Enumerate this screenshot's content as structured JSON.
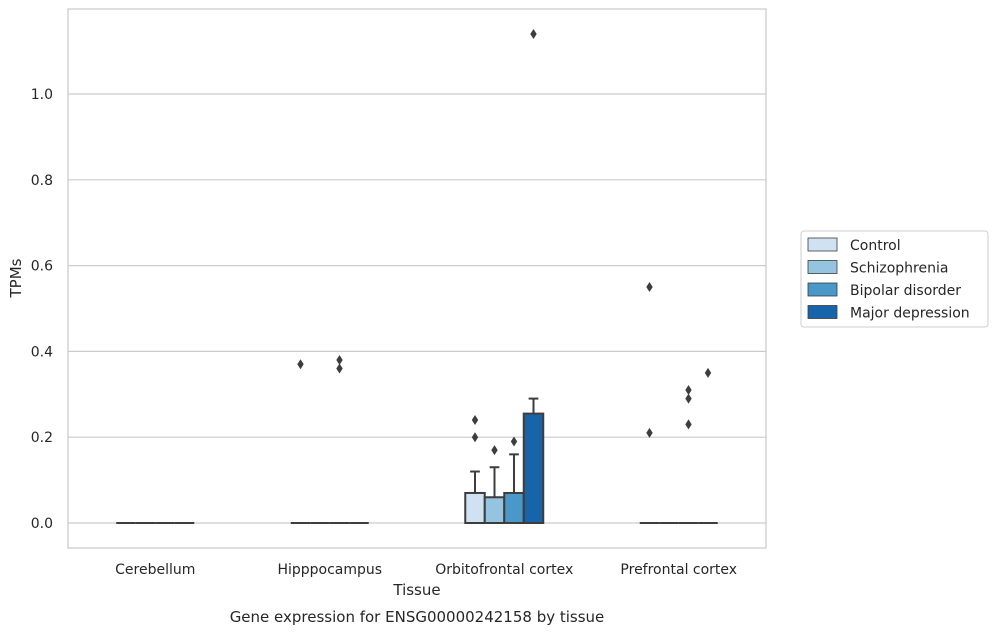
{
  "caption": "Gene expression for ENSG00000242158 by tissue",
  "chart_data": {
    "type": "box",
    "title": "",
    "xlabel": "Tissue",
    "ylabel": "TPMs",
    "ylim": [
      -0.055,
      1.2
    ],
    "yticks": [
      0.0,
      0.2,
      0.4,
      0.6,
      0.8,
      1.0
    ],
    "ytick_labels": [
      "0.0",
      "0.2",
      "0.4",
      "0.6",
      "0.8",
      "1.0"
    ],
    "grid": "horizontal",
    "legend_placement": "right",
    "categories": [
      "Cerebellum",
      "Hipppocampus",
      "Orbitofrontal cortex",
      "Prefrontal cortex"
    ],
    "series": [
      {
        "name": "Control",
        "color": "#d0e1f2",
        "boxes": [
          {
            "q1": 0,
            "median": 0,
            "q3": 0,
            "whisker_low": 0,
            "whisker_high": 0,
            "outliers": []
          },
          {
            "q1": 0,
            "median": 0,
            "q3": 0,
            "whisker_low": 0,
            "whisker_high": 0,
            "outliers": [
              0.37
            ]
          },
          {
            "q1": 0,
            "median": 0,
            "q3": 0.07,
            "whisker_low": 0,
            "whisker_high": 0.12,
            "outliers": [
              0.2,
              0.24
            ]
          },
          {
            "q1": 0,
            "median": 0,
            "q3": 0,
            "whisker_low": 0,
            "whisker_high": 0,
            "outliers": [
              0.21,
              0.55
            ]
          }
        ]
      },
      {
        "name": "Schizophrenia",
        "color": "#94c4df",
        "boxes": [
          {
            "q1": 0,
            "median": 0,
            "q3": 0,
            "whisker_low": 0,
            "whisker_high": 0,
            "outliers": []
          },
          {
            "q1": 0,
            "median": 0,
            "q3": 0,
            "whisker_low": 0,
            "whisker_high": 0,
            "outliers": []
          },
          {
            "q1": 0,
            "median": 0,
            "q3": 0.06,
            "whisker_low": 0,
            "whisker_high": 0.13,
            "outliers": [
              0.17
            ]
          },
          {
            "q1": 0,
            "median": 0,
            "q3": 0,
            "whisker_low": 0,
            "whisker_high": 0,
            "outliers": []
          }
        ]
      },
      {
        "name": "Bipolar disorder",
        "color": "#4a98c9",
        "boxes": [
          {
            "q1": 0,
            "median": 0,
            "q3": 0,
            "whisker_low": 0,
            "whisker_high": 0,
            "outliers": []
          },
          {
            "q1": 0,
            "median": 0,
            "q3": 0,
            "whisker_low": 0,
            "whisker_high": 0,
            "outliers": [
              0.36,
              0.38
            ]
          },
          {
            "q1": 0,
            "median": 0,
            "q3": 0.07,
            "whisker_low": 0,
            "whisker_high": 0.16,
            "outliers": [
              0.19
            ]
          },
          {
            "q1": 0,
            "median": 0,
            "q3": 0,
            "whisker_low": 0,
            "whisker_high": 0,
            "outliers": [
              0.23,
              0.29,
              0.31
            ]
          }
        ]
      },
      {
        "name": "Major depression",
        "color": "#1764ab",
        "boxes": [
          {
            "q1": 0,
            "median": 0,
            "q3": 0,
            "whisker_low": 0,
            "whisker_high": 0,
            "outliers": []
          },
          {
            "q1": 0,
            "median": 0,
            "q3": 0,
            "whisker_low": 0,
            "whisker_high": 0,
            "outliers": []
          },
          {
            "q1": 0,
            "median": 0,
            "q3": 0.255,
            "whisker_low": 0,
            "whisker_high": 0.29,
            "outliers": [
              1.14
            ]
          },
          {
            "q1": 0,
            "median": 0,
            "q3": 0,
            "whisker_low": 0,
            "whisker_high": 0,
            "outliers": [
              0.35
            ]
          }
        ]
      }
    ]
  }
}
